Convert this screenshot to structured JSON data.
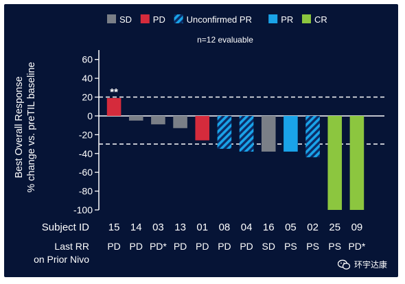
{
  "chart_data": {
    "type": "bar",
    "title": "",
    "subtitle": "n=12 evaluable",
    "ylabel_lines": [
      "Best Overall Response",
      "% change vs. preTIL baseline"
    ],
    "ylim": [
      -100,
      70
    ],
    "yticks": [
      60,
      40,
      20,
      0,
      -20,
      -40,
      -60,
      -80,
      -100
    ],
    "reference_lines": [
      20,
      -30
    ],
    "legend": [
      {
        "key": "SD",
        "label": "SD",
        "color": "#7a7f87",
        "hatched": false
      },
      {
        "key": "PD",
        "label": "PD",
        "color": "#d52b3c",
        "hatched": false
      },
      {
        "key": "UPR",
        "label": "Unconfirmed PR",
        "color": "#1aa3e8",
        "hatched": true
      },
      {
        "key": "PR",
        "label": "PR",
        "color": "#1aa3e8",
        "hatched": false
      },
      {
        "key": "CR",
        "label": "CR",
        "color": "#8cc63f",
        "hatched": false
      }
    ],
    "legend_position": "top",
    "row_labels": {
      "subject": "Subject ID",
      "prior_line1": "Last RR",
      "prior_line2": "on Prior Nivo"
    },
    "bars": [
      {
        "subject": "15",
        "value": 19,
        "response": "PD",
        "prior": "PD",
        "annotation": "**"
      },
      {
        "subject": "14",
        "value": -5,
        "response": "SD",
        "prior": "PD",
        "annotation": ""
      },
      {
        "subject": "03",
        "value": -9,
        "response": "SD",
        "prior": "PD*",
        "annotation": ""
      },
      {
        "subject": "13",
        "value": -13,
        "response": "SD",
        "prior": "PD",
        "annotation": ""
      },
      {
        "subject": "01",
        "value": -26,
        "response": "PD",
        "prior": "PD",
        "annotation": ""
      },
      {
        "subject": "08",
        "value": -35,
        "response": "UPR",
        "prior": "PD",
        "annotation": ""
      },
      {
        "subject": "04",
        "value": -38,
        "response": "UPR",
        "prior": "PD",
        "annotation": ""
      },
      {
        "subject": "16",
        "value": -38,
        "response": "SD",
        "prior": "SD",
        "annotation": ""
      },
      {
        "subject": "05",
        "value": -38,
        "response": "PR",
        "prior": "PS",
        "annotation": ""
      },
      {
        "subject": "02",
        "value": -44,
        "response": "UPR",
        "prior": "PS",
        "annotation": ""
      },
      {
        "subject": "25",
        "value": -100,
        "response": "CR",
        "prior": "PS",
        "annotation": ""
      },
      {
        "subject": "09",
        "value": -100,
        "response": "CR",
        "prior": "PD*",
        "annotation": ""
      }
    ]
  },
  "watermark": {
    "text": "环宇达康"
  }
}
